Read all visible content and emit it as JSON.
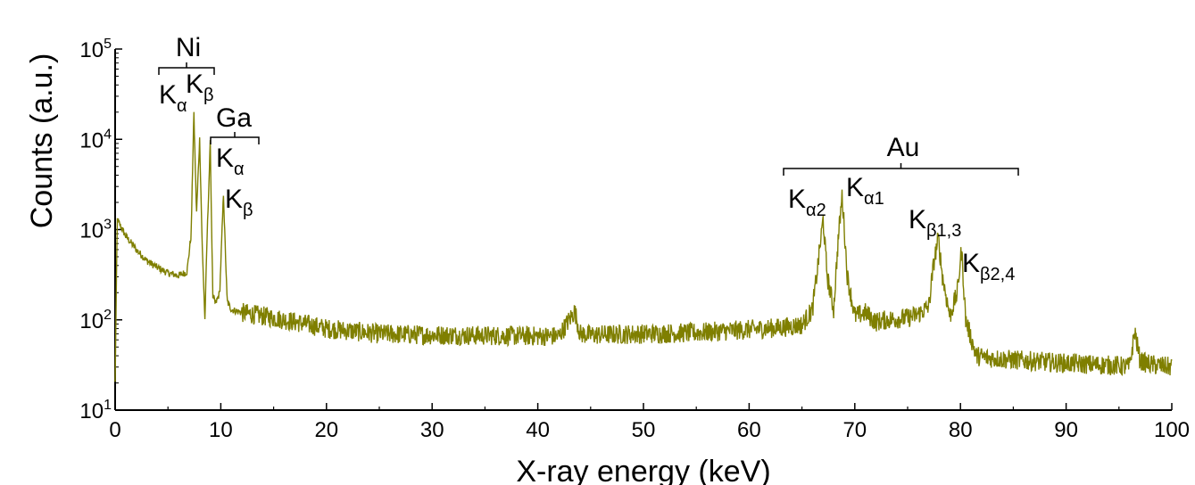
{
  "chart_data": {
    "type": "line",
    "title": "",
    "xlabel": "X-ray energy (keV)",
    "ylabel": "Counts (a.u.)",
    "xlim": [
      0,
      100
    ],
    "ylim": [
      10,
      100000
    ],
    "yscale": "log",
    "grid": false,
    "color": "#7f7f00",
    "x_ticks": [
      "0",
      "10",
      "20",
      "30",
      "40",
      "50",
      "60",
      "70",
      "80",
      "90",
      "100"
    ],
    "y_ticks": [
      {
        "base": "10",
        "exp": "1"
      },
      {
        "base": "10",
        "exp": "2"
      },
      {
        "base": "10",
        "exp": "3"
      },
      {
        "base": "10",
        "exp": "4"
      },
      {
        "base": "10",
        "exp": "5"
      }
    ],
    "series": [
      {
        "x": [
          0,
          0.2,
          0.5,
          1,
          2,
          3,
          4,
          5,
          6,
          6.8,
          7.2,
          7.45,
          7.7,
          8.0,
          8.25,
          8.5,
          8.7,
          9.0,
          9.25,
          9.5,
          9.9,
          10.25,
          10.6,
          11,
          12,
          13,
          14,
          16,
          18,
          20,
          25,
          30,
          35,
          40,
          42,
          43.5,
          44,
          45,
          50,
          55,
          60,
          63,
          65,
          66,
          66.6,
          67.0,
          67.4,
          68,
          68.4,
          68.8,
          69.3,
          70,
          71,
          72,
          73,
          75,
          76,
          77,
          77.5,
          77.9,
          78.3,
          79,
          79.7,
          80.1,
          80.5,
          81.5,
          82.5,
          85,
          90,
          95,
          96,
          96.5,
          97,
          98,
          100
        ],
        "y": [
          20,
          1300,
          1100,
          850,
          600,
          450,
          380,
          330,
          310,
          340,
          900,
          20000,
          1500,
          10000,
          600,
          100,
          800,
          9000,
          180,
          150,
          200,
          2500,
          160,
          130,
          120,
          115,
          110,
          100,
          90,
          80,
          70,
          68,
          67,
          66,
          66,
          125,
          70,
          68,
          70,
          72,
          78,
          82,
          88,
          130,
          500,
          1300,
          300,
          130,
          700,
          2400,
          300,
          110,
          120,
          95,
          100,
          105,
          115,
          140,
          450,
          800,
          300,
          110,
          200,
          600,
          100,
          40,
          38,
          36,
          33,
          31,
          30,
          75,
          35,
          32,
          30
        ]
      }
    ],
    "annotations": {
      "ni": {
        "label": "Ni",
        "lines": [
          {
            "text": "K",
            "sub": "α"
          },
          {
            "text": "K",
            "sub": "β"
          }
        ]
      },
      "ga": {
        "label": "Ga",
        "lines": [
          {
            "text": "K",
            "sub": "α"
          },
          {
            "text": "K",
            "sub": "β"
          }
        ]
      },
      "au": {
        "label": "Au",
        "lines": [
          {
            "text": "K",
            "sub": "α2"
          },
          {
            "text": "K",
            "sub": "α1"
          },
          {
            "text": "K",
            "sub": "β1,3"
          },
          {
            "text": "K",
            "sub": "β2,4"
          }
        ]
      }
    }
  }
}
